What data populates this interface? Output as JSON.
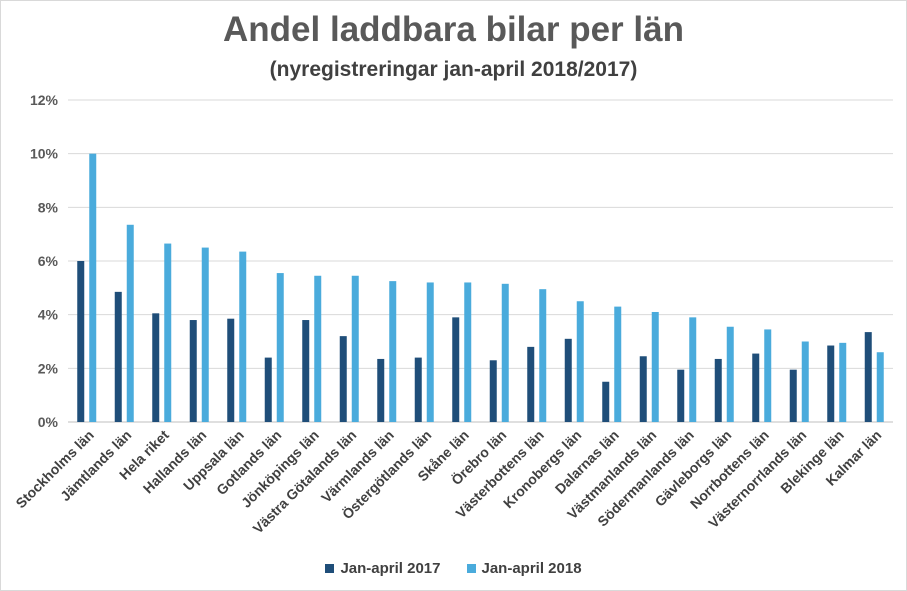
{
  "chart_data": {
    "type": "bar",
    "title": "Andel laddbara bilar per län",
    "subtitle": "(nyregistreringar jan-april 2018/2017)",
    "xlabel": "",
    "ylabel": "",
    "ylim": [
      0,
      12
    ],
    "yticks": [
      "0%",
      "2%",
      "4%",
      "6%",
      "8%",
      "10%",
      "12%"
    ],
    "grid": true,
    "legend_position": "bottom",
    "categories": [
      "Stockholms län",
      "Jämtlands län",
      "Hela riket",
      "Hallands län",
      "Uppsala län",
      "Gotlands län",
      "Jönköpings län",
      "Västra Götalands län",
      "Värmlands län",
      "Östergötlands län",
      "Skåne län",
      "Örebro län",
      "Västerbottens län",
      "Kronobergs län",
      "Dalarnas län",
      "Västmanlands län",
      "Södermanlands län",
      "Gävleborgs län",
      "Norrbottens län",
      "Västernorrlands län",
      "Blekinge län",
      "Kalmar län"
    ],
    "series": [
      {
        "name": "Jan-april 2017",
        "color": "#1f4e79",
        "values": [
          6.0,
          4.85,
          4.05,
          3.8,
          3.85,
          2.4,
          3.8,
          3.2,
          2.35,
          2.4,
          3.9,
          2.3,
          2.8,
          3.1,
          1.5,
          2.45,
          1.95,
          2.35,
          2.55,
          1.95,
          2.85,
          3.35
        ]
      },
      {
        "name": "Jan-april 2018",
        "color": "#4aabdc",
        "values": [
          10.0,
          7.35,
          6.65,
          6.5,
          6.35,
          5.55,
          5.45,
          5.45,
          5.25,
          5.2,
          5.2,
          5.15,
          4.95,
          4.5,
          4.3,
          4.1,
          3.9,
          3.55,
          3.45,
          3.0,
          2.95,
          2.6
        ]
      }
    ]
  }
}
